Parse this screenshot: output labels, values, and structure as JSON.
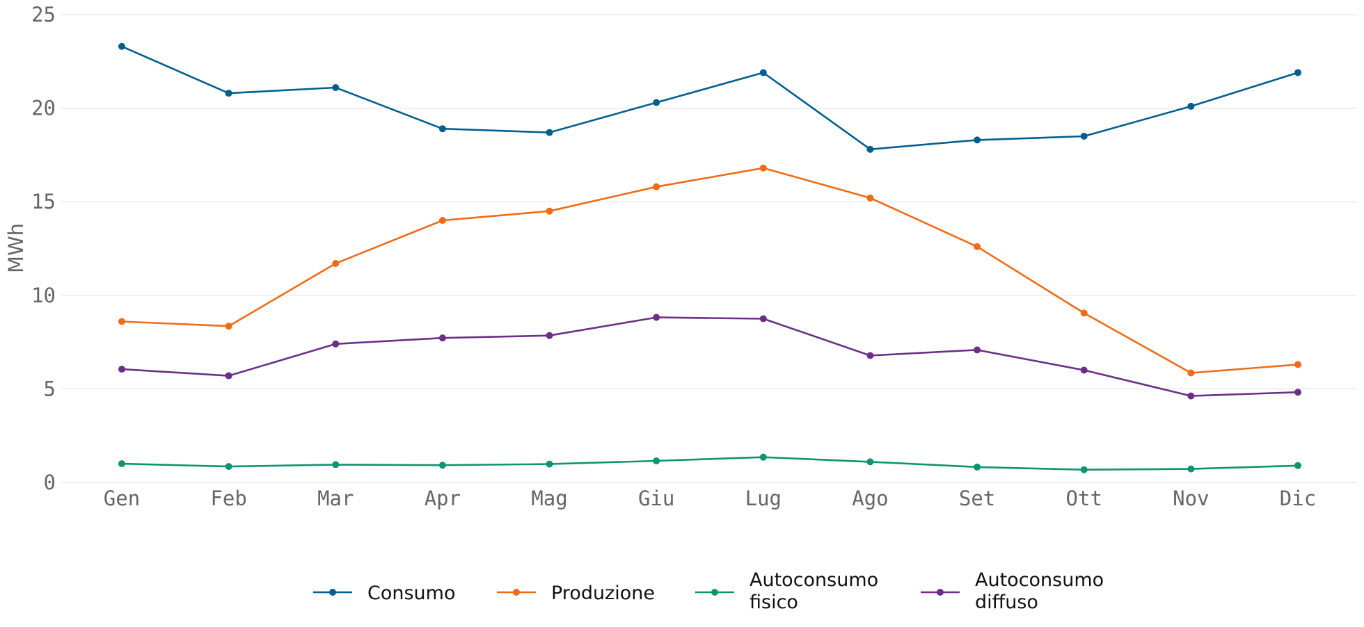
{
  "chart_data": {
    "type": "line",
    "title": "",
    "xlabel": "",
    "ylabel": "MWh",
    "ylim": [
      0,
      25
    ],
    "yticks": [
      0,
      5,
      10,
      15,
      20,
      25
    ],
    "grid": "horizontal",
    "legend_position": "bottom",
    "categories": [
      "Gen",
      "Feb",
      "Mar",
      "Apr",
      "Mag",
      "Giu",
      "Lug",
      "Ago",
      "Set",
      "Ott",
      "Nov",
      "Dic"
    ],
    "series": [
      {
        "name": "Consumo",
        "legend_lines": [
          "Consumo"
        ],
        "color": "#005f8f",
        "values": [
          23.3,
          20.8,
          21.1,
          18.9,
          18.7,
          20.3,
          21.9,
          17.8,
          18.3,
          18.5,
          20.1,
          21.9
        ]
      },
      {
        "name": "Produzione",
        "legend_lines": [
          "Produzione"
        ],
        "color": "#f26a15",
        "values": [
          8.6,
          8.35,
          11.7,
          14.0,
          14.5,
          15.8,
          16.8,
          15.2,
          12.6,
          9.05,
          5.85,
          6.3
        ]
      },
      {
        "name": "Autoconsumo fisico",
        "legend_lines": [
          "Autoconsumo",
          "fisico"
        ],
        "color": "#0e9470",
        "values": [
          1.0,
          0.85,
          0.95,
          0.92,
          0.98,
          1.15,
          1.35,
          1.1,
          0.82,
          0.68,
          0.72,
          0.9
        ]
      },
      {
        "name": "Autoconsumo diffuso",
        "legend_lines": [
          "Autoconsumo",
          "diffuso"
        ],
        "color": "#6b2f87",
        "values": [
          6.05,
          5.7,
          7.4,
          7.72,
          7.85,
          8.82,
          8.75,
          6.78,
          7.08,
          6.0,
          4.62,
          4.82
        ]
      }
    ],
    "colors": {
      "grid": "#e6e6e6",
      "tick_text": "#666666",
      "legend_text": "#111111"
    }
  }
}
